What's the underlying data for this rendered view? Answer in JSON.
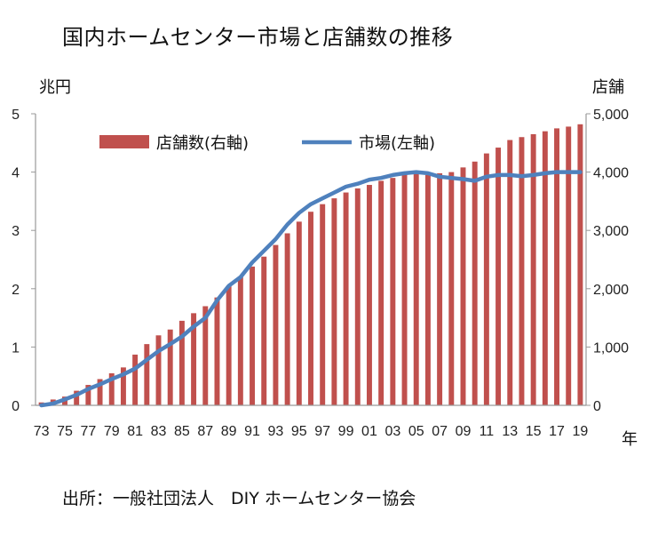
{
  "title": "国内ホームセンター市場と店舗数の推移",
  "left_unit": "兆円",
  "right_unit": "店舗",
  "x_unit": "年",
  "source": "出所：一般社団法人　DIY ホームセンター協会",
  "colors": {
    "bars": "#c0504d",
    "line": "#4f81bd",
    "axis": "#999999"
  },
  "chart_data": {
    "type": "bar+line",
    "categories": [
      "73",
      "74",
      "75",
      "76",
      "77",
      "78",
      "79",
      "80",
      "81",
      "82",
      "83",
      "84",
      "85",
      "86",
      "87",
      "88",
      "89",
      "90",
      "91",
      "92",
      "93",
      "94",
      "95",
      "96",
      "97",
      "98",
      "99",
      "00",
      "01",
      "02",
      "03",
      "04",
      "05",
      "06",
      "07",
      "08",
      "09",
      "10",
      "11",
      "12",
      "13",
      "14",
      "15",
      "16",
      "17",
      "18",
      "19"
    ],
    "x_tick_labels": [
      "73",
      "75",
      "77",
      "79",
      "81",
      "83",
      "85",
      "87",
      "89",
      "91",
      "93",
      "95",
      "97",
      "99",
      "01",
      "03",
      "05",
      "07",
      "09",
      "11",
      "13",
      "15",
      "17",
      "19"
    ],
    "series": [
      {
        "name": "店舗数(右軸)",
        "type": "bar",
        "axis": "right",
        "values": [
          50,
          100,
          150,
          250,
          350,
          450,
          550,
          650,
          870,
          1050,
          1200,
          1300,
          1450,
          1580,
          1700,
          1850,
          2050,
          2200,
          2380,
          2550,
          2750,
          2950,
          3150,
          3320,
          3450,
          3550,
          3650,
          3720,
          3780,
          3850,
          3900,
          3960,
          4000,
          3950,
          3980,
          4000,
          4080,
          4180,
          4320,
          4420,
          4550,
          4600,
          4650,
          4700,
          4750,
          4780,
          4820
        ]
      },
      {
        "name": "市場(左軸)",
        "type": "line",
        "axis": "left",
        "values": [
          0.0,
          0.03,
          0.1,
          0.18,
          0.28,
          0.36,
          0.45,
          0.53,
          0.63,
          0.78,
          0.93,
          1.05,
          1.18,
          1.35,
          1.5,
          1.8,
          2.05,
          2.2,
          2.45,
          2.65,
          2.85,
          3.1,
          3.3,
          3.45,
          3.55,
          3.65,
          3.75,
          3.8,
          3.87,
          3.9,
          3.95,
          3.98,
          4.0,
          3.98,
          3.92,
          3.9,
          3.88,
          3.85,
          3.92,
          3.95,
          3.95,
          3.93,
          3.95,
          3.98,
          4.0,
          4.0,
          4.0
        ]
      }
    ],
    "y_left": {
      "min": 0,
      "max": 5,
      "ticks": [
        0,
        1,
        2,
        3,
        4,
        5
      ],
      "tick_labels": [
        "0",
        "1",
        "2",
        "3",
        "4",
        "5"
      ]
    },
    "y_right": {
      "min": 0,
      "max": 5000,
      "ticks": [
        0,
        1000,
        2000,
        3000,
        4000,
        5000
      ],
      "tick_labels": [
        "0",
        "1,000",
        "2,000",
        "3,000",
        "4,000",
        "5,000"
      ]
    },
    "grid": false,
    "legend_position": "top-left"
  }
}
